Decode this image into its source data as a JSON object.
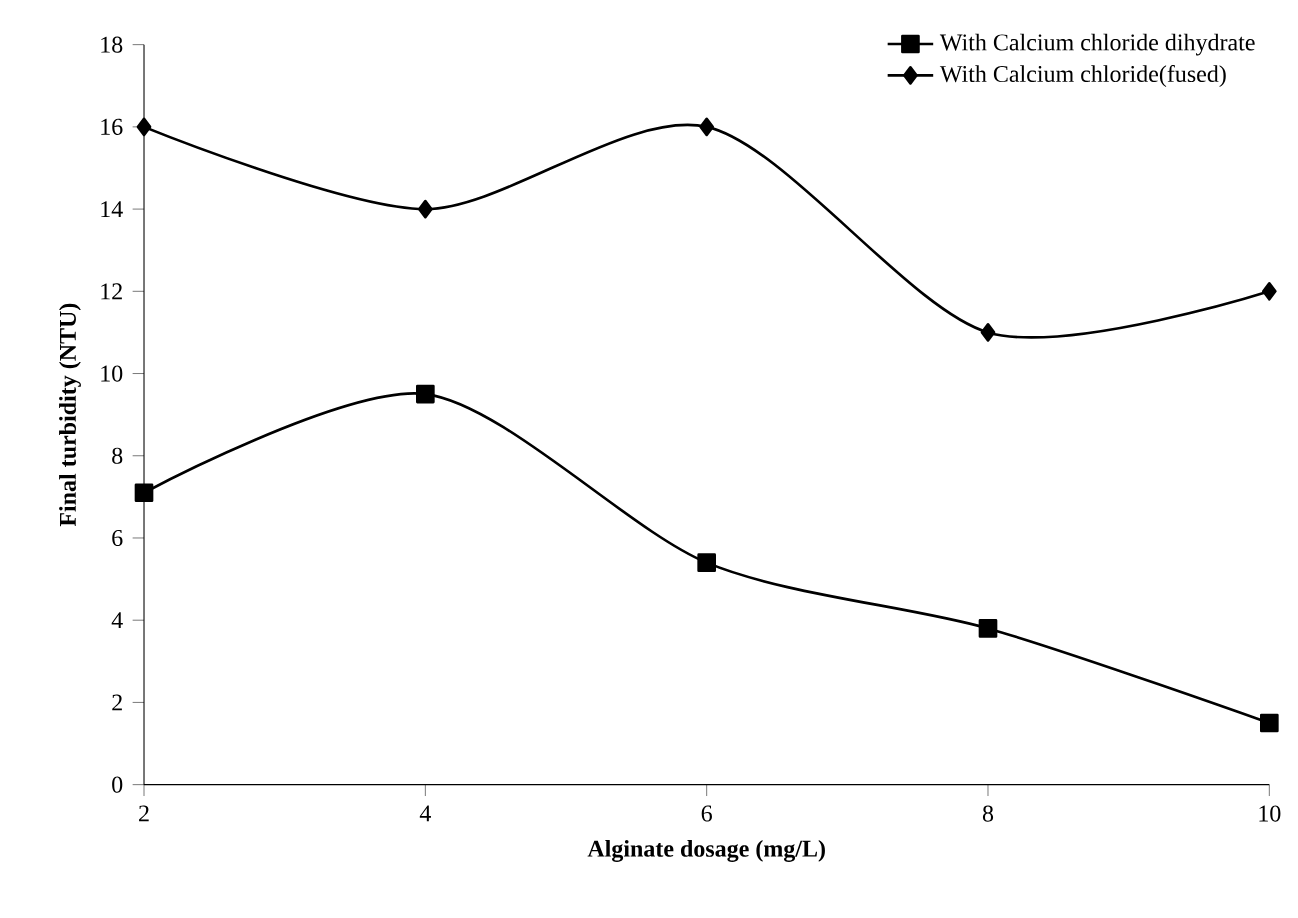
{
  "chart_data": {
    "type": "line",
    "xlabel": "Alginate dosage (mg/L)",
    "ylabel": "Final turbidity (NTU)",
    "x": [
      2,
      4,
      6,
      8,
      10
    ],
    "series": [
      {
        "name": "With Calcium chloride dihydrate",
        "color": "#000000",
        "marker": "square",
        "values": [
          7.1,
          9.5,
          5.4,
          3.8,
          1.5
        ]
      },
      {
        "name": "With Calcium chloride(fused)",
        "color": "#000000",
        "marker": "diamond",
        "values": [
          16,
          14,
          16,
          11,
          12
        ]
      }
    ],
    "xlim": [
      2,
      10
    ],
    "xticks": [
      2,
      4,
      6,
      8,
      10
    ],
    "ylim": [
      0,
      18
    ],
    "yticks": [
      0,
      2,
      4,
      6,
      8,
      10,
      12,
      14,
      16,
      18
    ],
    "legend": "top right",
    "line_style": "solid"
  }
}
